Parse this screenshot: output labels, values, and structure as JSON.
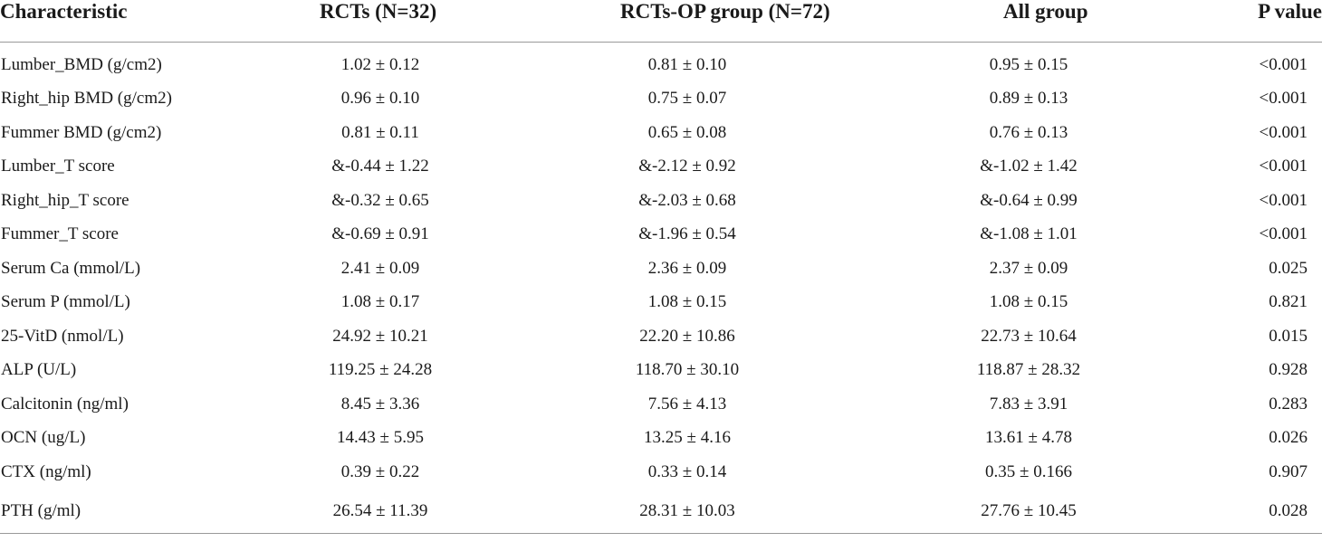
{
  "table": {
    "headers": [
      "Characteristic",
      "RCTs (N=32)",
      "RCTs-OP group (N=72)",
      "All group",
      "P value"
    ],
    "rows": [
      [
        "Lumber_BMD (g/cm2)",
        "1.02 ± 0.12",
        "0.81 ± 0.10",
        "0.95 ± 0.15",
        "<0.001"
      ],
      [
        "Right_hip BMD (g/cm2)",
        "0.96 ± 0.10",
        "0.75 ± 0.07",
        "0.89 ± 0.13",
        "<0.001"
      ],
      [
        "Fummer BMD (g/cm2)",
        "0.81 ± 0.11",
        "0.65 ± 0.08",
        "0.76 ± 0.13",
        "<0.001"
      ],
      [
        "Lumber_T score",
        "&-0.44 ± 1.22",
        "&-2.12 ± 0.92",
        "&-1.02 ± 1.42",
        "<0.001"
      ],
      [
        "Right_hip_T score",
        "&-0.32 ± 0.65",
        "&-2.03 ± 0.68",
        "&-0.64 ± 0.99",
        "<0.001"
      ],
      [
        "Fummer_T score",
        "&-0.69 ± 0.91",
        "&-1.96 ± 0.54",
        "&-1.08 ± 1.01",
        "<0.001"
      ],
      [
        "Serum Ca (mmol/L)",
        "2.41 ± 0.09",
        "2.36 ± 0.09",
        "2.37 ± 0.09",
        "0.025"
      ],
      [
        "Serum P (mmol/L)",
        "1.08 ± 0.17",
        "1.08 ± 0.15",
        "1.08 ± 0.15",
        "0.821"
      ],
      [
        "25-VitD (nmol/L)",
        "24.92 ± 10.21",
        "22.20 ± 10.86",
        "22.73 ± 10.64",
        "0.015"
      ],
      [
        "ALP (U/L)",
        "119.25 ± 24.28",
        "118.70 ± 30.10",
        "118.87 ± 28.32",
        "0.928"
      ],
      [
        "Calcitonin (ng/ml)",
        "8.45 ± 3.36",
        "7.56 ± 4.13",
        "7.83 ± 3.91",
        "0.283"
      ],
      [
        "OCN (ug/L)",
        "14.43 ± 5.95",
        "13.25 ± 4.16",
        "13.61 ± 4.78",
        "0.026"
      ],
      [
        "CTX (ng/ml)",
        "0.39 ± 0.22",
        "0.33 ± 0.14",
        "0.35 ± 0.166",
        "0.907"
      ],
      [
        "PTH (g/ml)",
        "26.54 ± 11.39",
        "28.31 ± 10.03",
        "27.76 ± 10.45",
        "0.028"
      ]
    ]
  }
}
